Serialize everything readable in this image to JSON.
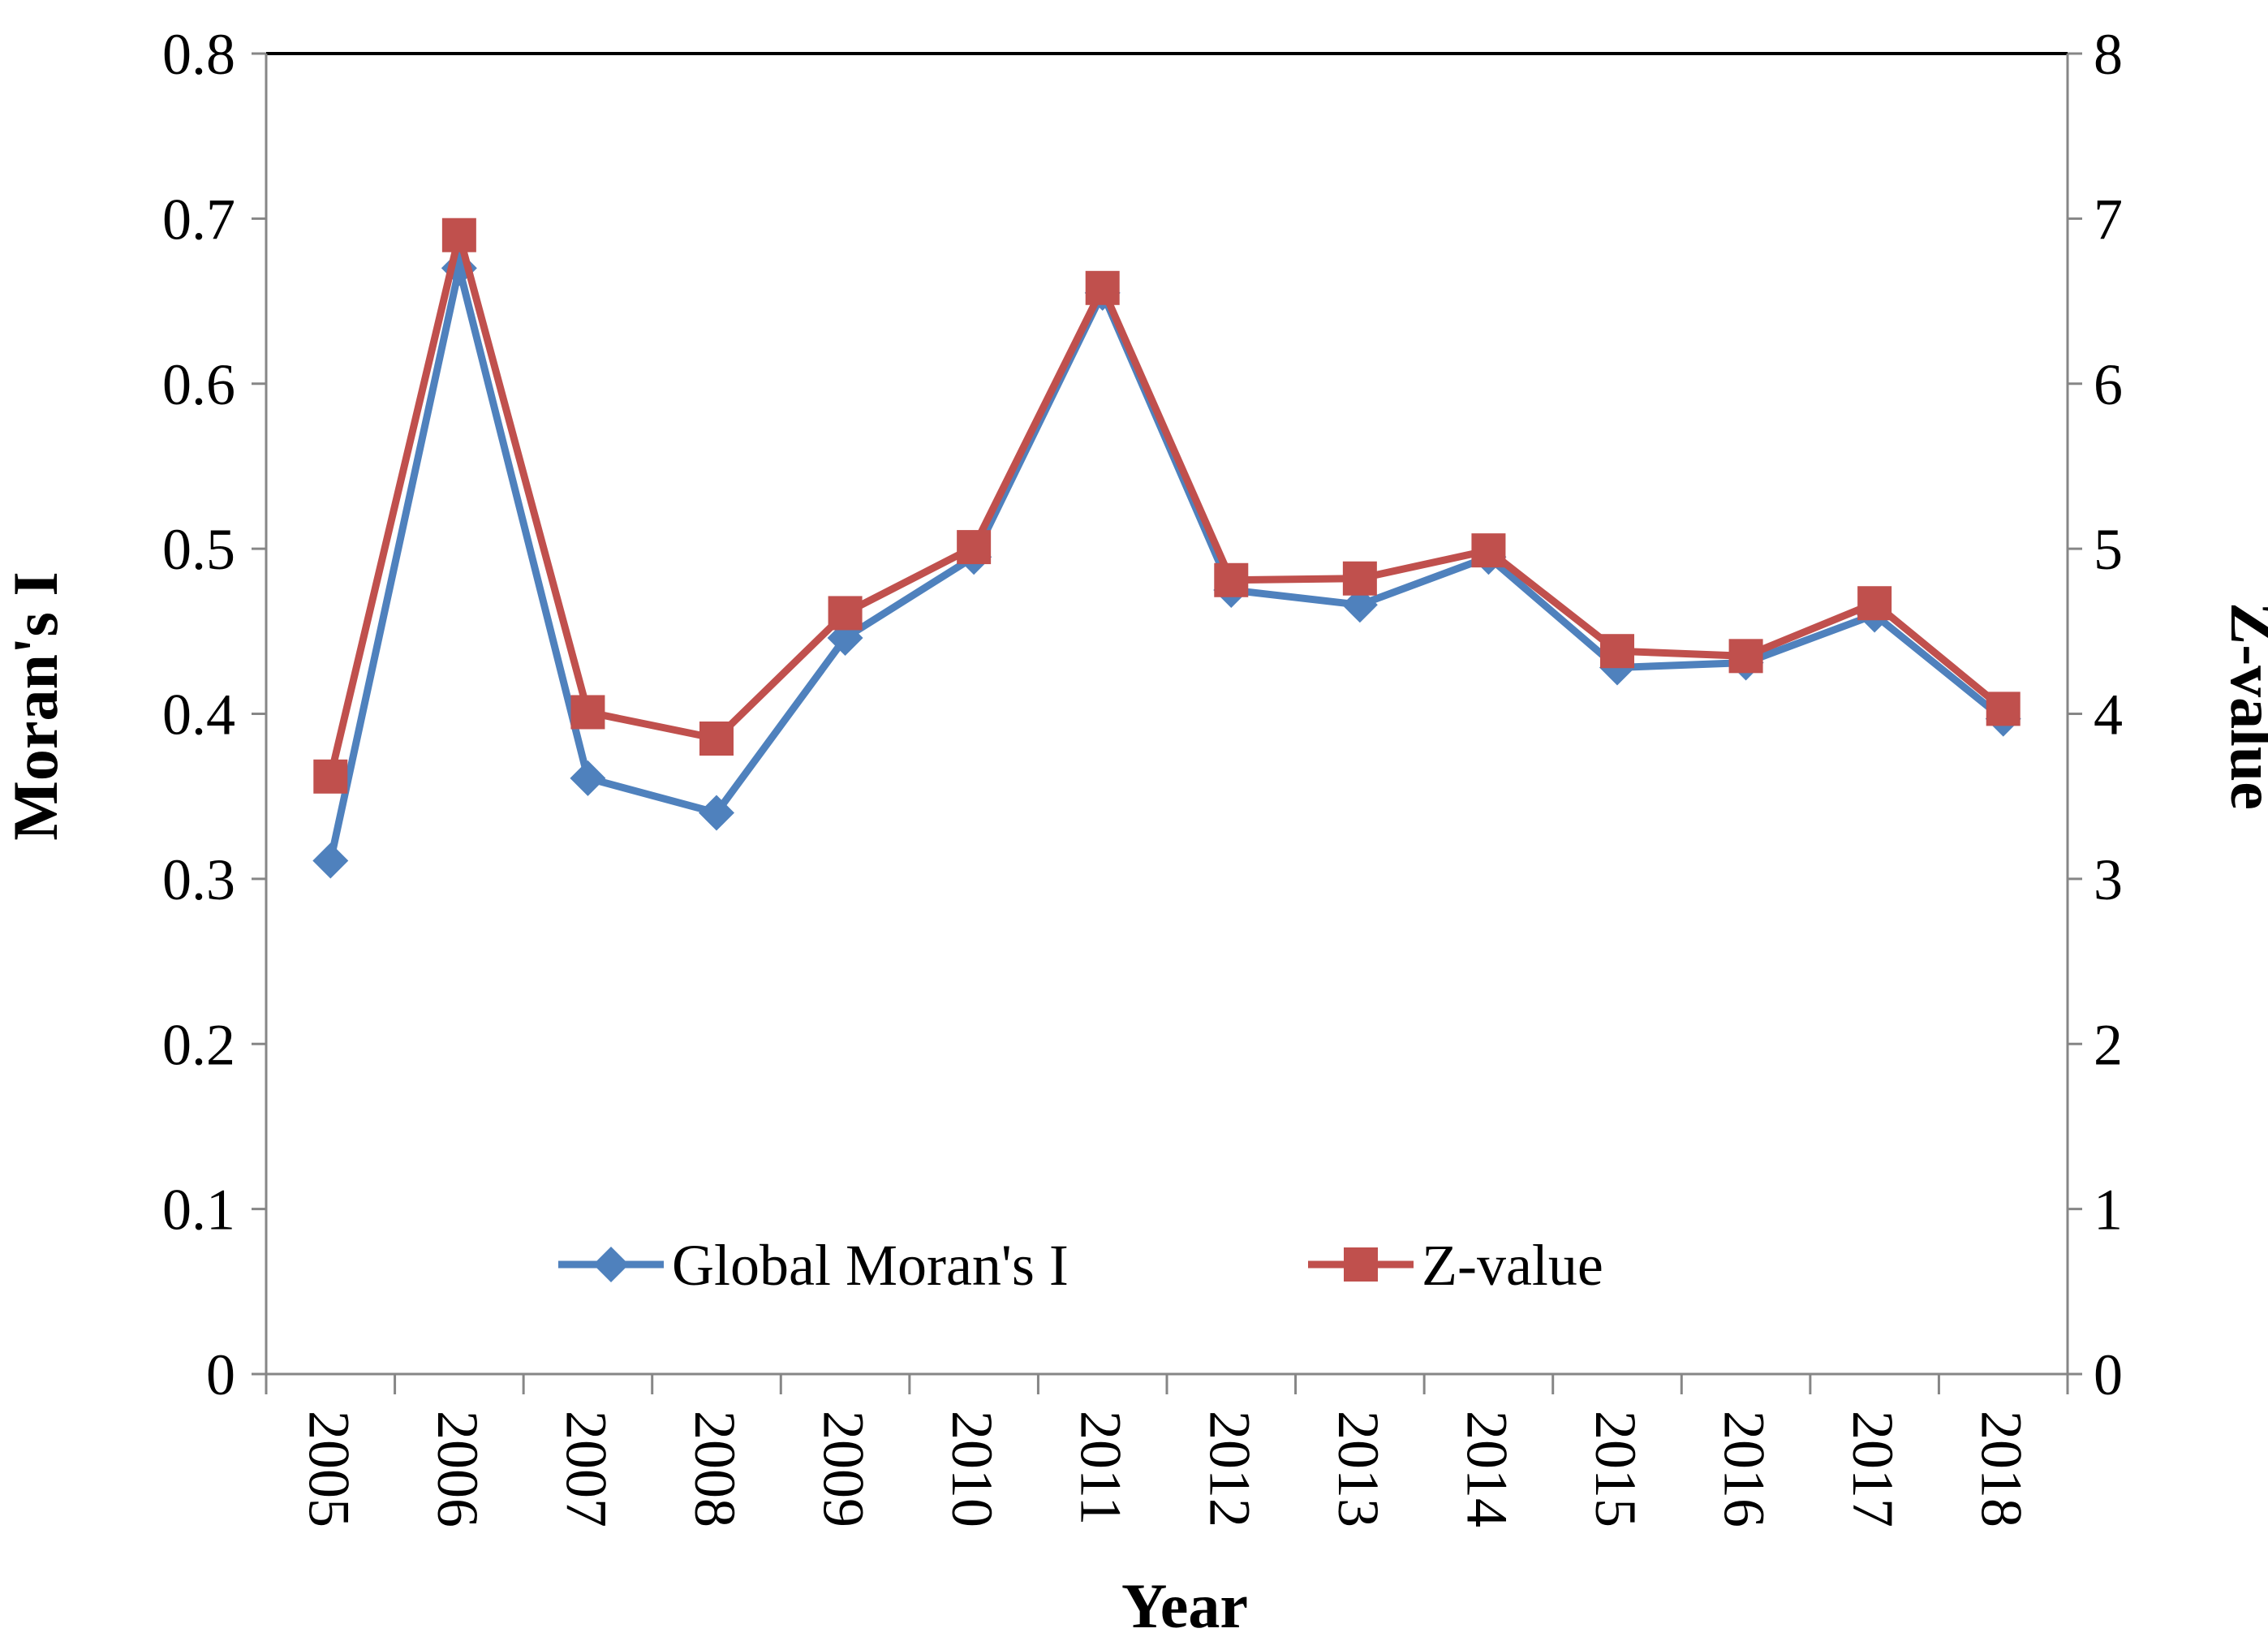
{
  "chart_data": {
    "type": "line",
    "categories": [
      "2005",
      "2006",
      "2007",
      "2008",
      "2009",
      "2010",
      "2011",
      "2012",
      "2013",
      "2014",
      "2015",
      "2016",
      "2017",
      "2018"
    ],
    "series": [
      {
        "name": "Global Moran's I",
        "axis": "left",
        "color": "#4f81bd",
        "marker": "diamond",
        "values": [
          0.311,
          0.67,
          0.361,
          0.34,
          0.446,
          0.495,
          0.655,
          0.475,
          0.466,
          0.495,
          0.428,
          0.431,
          0.46,
          0.397
        ]
      },
      {
        "name": "Z-value",
        "axis": "right",
        "color": "#c0504d",
        "marker": "square",
        "values": [
          3.62,
          6.9,
          4.01,
          3.85,
          4.61,
          5.01,
          6.58,
          4.81,
          4.82,
          4.99,
          4.38,
          4.35,
          4.67,
          4.03
        ]
      }
    ],
    "y_left": {
      "label": "Moran's I",
      "range": [
        0,
        0.8
      ],
      "ticks": [
        "0",
        "0.1",
        "0.2",
        "0.3",
        "0.4",
        "0.5",
        "0.6",
        "0.7",
        "0.8"
      ]
    },
    "y_right": {
      "label": "Z-value",
      "range": [
        0,
        8
      ],
      "ticks": [
        "0",
        "1",
        "2",
        "3",
        "4",
        "5",
        "6",
        "7",
        "8"
      ]
    },
    "xlabel": "Year",
    "title": "",
    "grid": false,
    "legend": {
      "position": "bottom-center",
      "entries": [
        "Global Moran's I",
        "Z-value"
      ]
    }
  }
}
